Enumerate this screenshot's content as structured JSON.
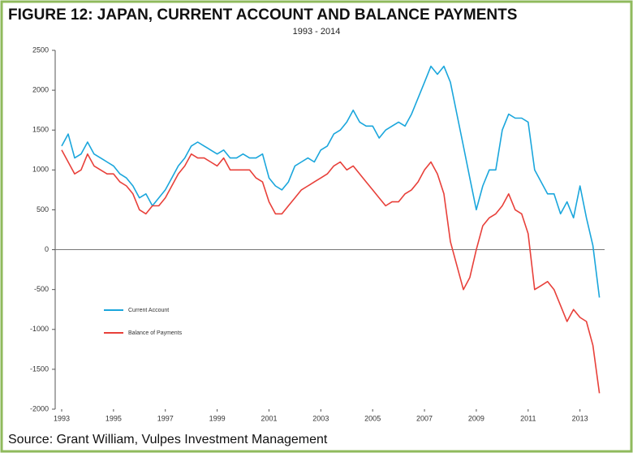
{
  "chart_data": {
    "type": "line",
    "title": "FIGURE 12: JAPAN, CURRENT ACCOUNT AND BALANCE PAYMENTS",
    "subtitle": "1993 - 2014",
    "source": "Source: Grant William, Vulpes Investment Management",
    "legend": "middle left",
    "xlim": [
      1992.75,
      2013.95
    ],
    "xticks": [
      1993,
      1995,
      1997,
      1999,
      2001,
      2003,
      2005,
      2007,
      2009,
      2011,
      2013
    ],
    "ylim": [
      -2000,
      2500
    ],
    "yticks": [
      -2000,
      -1500,
      -1000,
      -500,
      0,
      500,
      1000,
      1500,
      2000,
      2500
    ],
    "x": [
      1993,
      1993.25,
      1993.5,
      1993.75,
      1994,
      1994.25,
      1994.5,
      1994.75,
      1995,
      1995.25,
      1995.5,
      1995.75,
      1996,
      1996.25,
      1996.5,
      1996.75,
      1997,
      1997.25,
      1997.5,
      1997.75,
      1998,
      1998.25,
      1998.5,
      1998.75,
      1999,
      1999.25,
      1999.5,
      1999.75,
      2000,
      2000.25,
      2000.5,
      2000.75,
      2001,
      2001.25,
      2001.5,
      2001.75,
      2002,
      2002.25,
      2002.5,
      2002.75,
      2003,
      2003.25,
      2003.5,
      2003.75,
      2004,
      2004.25,
      2004.5,
      2004.75,
      2005,
      2005.25,
      2005.5,
      2005.75,
      2006,
      2006.25,
      2006.5,
      2006.75,
      2007,
      2007.25,
      2007.5,
      2007.75,
      2008,
      2008.25,
      2008.5,
      2008.75,
      2009,
      2009.25,
      2009.5,
      2009.75,
      2010,
      2010.25,
      2010.5,
      2010.75,
      2011,
      2011.25,
      2011.5,
      2011.75,
      2012,
      2012.25,
      2012.5,
      2012.75,
      2013,
      2013.25,
      2013.5,
      2013.75
    ],
    "series": [
      {
        "name": "Current Account",
        "color": "#1aa6dc",
        "values": [
          1300,
          1450,
          1150,
          1200,
          1350,
          1200,
          1150,
          1100,
          1050,
          950,
          900,
          800,
          650,
          700,
          550,
          650,
          750,
          900,
          1050,
          1150,
          1300,
          1350,
          1300,
          1250,
          1200,
          1250,
          1150,
          1150,
          1200,
          1150,
          1150,
          1200,
          900,
          800,
          750,
          850,
          1050,
          1100,
          1150,
          1100,
          1250,
          1300,
          1450,
          1500,
          1600,
          1750,
          1600,
          1550,
          1550,
          1400,
          1500,
          1550,
          1600,
          1550,
          1700,
          1900,
          2100,
          2300,
          2200,
          2300,
          2100,
          1700,
          1300,
          900,
          500,
          800,
          1000,
          1000,
          1500,
          1700,
          1650,
          1650,
          1600,
          1000,
          850,
          700,
          700,
          450,
          600,
          400,
          800,
          400,
          50,
          -600
        ]
      },
      {
        "name": "Balance of Payments",
        "color": "#e8403a",
        "values": [
          1250,
          1100,
          950,
          1000,
          1200,
          1050,
          1000,
          950,
          950,
          850,
          800,
          700,
          500,
          450,
          550,
          550,
          650,
          800,
          950,
          1050,
          1200,
          1150,
          1150,
          1100,
          1050,
          1150,
          1000,
          1000,
          1000,
          1000,
          900,
          850,
          600,
          450,
          450,
          550,
          650,
          750,
          800,
          850,
          900,
          950,
          1050,
          1100,
          1000,
          1050,
          950,
          850,
          750,
          650,
          550,
          600,
          600,
          700,
          750,
          850,
          1000,
          1100,
          950,
          700,
          100,
          -200,
          -500,
          -350,
          0,
          300,
          400,
          450,
          550,
          700,
          500,
          450,
          200,
          -500,
          -450,
          -400,
          -500,
          -700,
          -900,
          -750,
          -850,
          -900,
          -1200,
          -1800
        ]
      }
    ]
  }
}
